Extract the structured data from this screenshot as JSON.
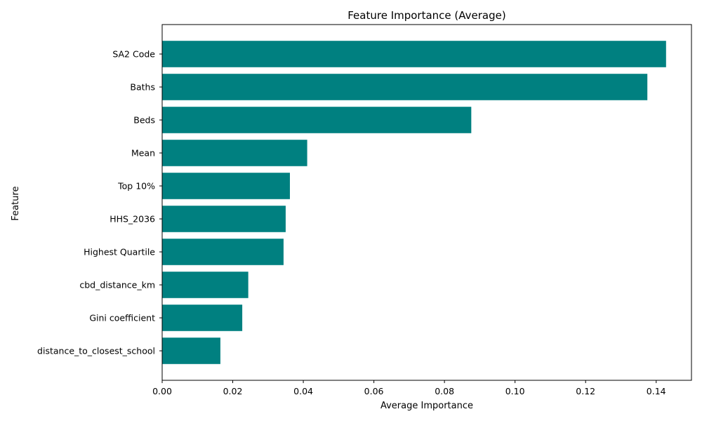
{
  "chart_data": {
    "type": "bar",
    "orientation": "horizontal",
    "title": "Feature Importance (Average)",
    "xlabel": "Average Importance",
    "ylabel": "Feature",
    "xlim": [
      0,
      0.15
    ],
    "x_ticks": [
      0.0,
      0.02,
      0.04,
      0.06,
      0.08,
      0.1,
      0.12,
      0.14
    ],
    "x_tick_labels": [
      "0.00",
      "0.02",
      "0.04",
      "0.06",
      "0.08",
      "0.10",
      "0.12",
      "0.14"
    ],
    "grid": false,
    "legend": "none",
    "bar_color": "#008080",
    "categories": [
      "SA2 Code",
      "Baths",
      "Beds",
      "Mean",
      "Top 10%",
      "HHS_2036",
      "Highest Quartile",
      "cbd_distance_km",
      "Gini coefficient",
      "distance_to_closest_school"
    ],
    "values": [
      0.1428,
      0.1375,
      0.0876,
      0.0411,
      0.0362,
      0.035,
      0.0344,
      0.0244,
      0.0227,
      0.0165
    ]
  }
}
